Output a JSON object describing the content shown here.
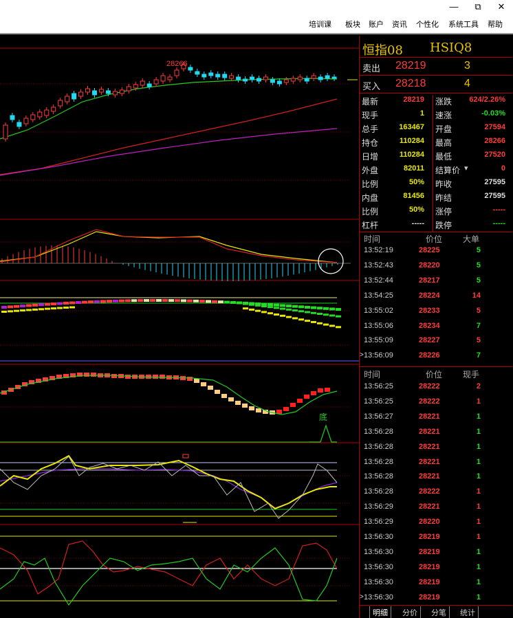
{
  "window": {
    "minimize_icon": "—",
    "restore_icon": "⧉",
    "close_icon": "✕"
  },
  "menu": [
    "培训课",
    "板块",
    "账户",
    "资讯",
    "个性化",
    "系统工具",
    "帮助"
  ],
  "chart": {
    "high_label": "28266",
    "signal_label": "底"
  },
  "quote": {
    "name": "恒指08",
    "code": "HSIQ8",
    "ask": {
      "label": "卖出",
      "price": "28219",
      "volume": "3"
    },
    "bid": {
      "label": "买入",
      "price": "28218",
      "volume": "4"
    },
    "rows": [
      {
        "l1": "最新",
        "v1": "28219",
        "c1": "#ff3b3b",
        "l2": "涨跌",
        "v2": "624/2.26%",
        "c2": "#ff3b3b"
      },
      {
        "l1": "现手",
        "v1": "1",
        "c1": "#e8e800",
        "l2": "速涨",
        "v2": "-0.03%",
        "c2": "#22dd22"
      },
      {
        "l1": "总手",
        "v1": "163467",
        "c1": "#e8e800",
        "l2": "开盘",
        "v2": "27594",
        "c2": "#ff3b3b"
      },
      {
        "l1": "持仓",
        "v1": "110284",
        "c1": "#e8e800",
        "l2": "最高",
        "v2": "28266",
        "c2": "#ff3b3b"
      },
      {
        "l1": "日增",
        "v1": "110284",
        "c1": "#e8e800",
        "l2": "最低",
        "v2": "27520",
        "c2": "#ff3b3b"
      },
      {
        "l1": "外盘",
        "v1": "82011",
        "c1": "#e8e800",
        "l2": "结算价",
        "v2": "0",
        "c2": "#ff3b3b"
      },
      {
        "l1": "比例",
        "v1": "50%",
        "c1": "#e8e800",
        "l2": "昨收",
        "v2": "27595",
        "c2": "#dddddd"
      },
      {
        "l1": "内盘",
        "v1": "81456",
        "c1": "#e8e800",
        "l2": "昨结",
        "v2": "27595",
        "c2": "#dddddd"
      },
      {
        "l1": "比例",
        "v1": "50%",
        "c1": "#e8e800",
        "l2": "涨停",
        "v2": "-----",
        "c2": "#ff3b3b"
      },
      {
        "l1": "杠杆",
        "v1": "-----",
        "c1": "#dddddd",
        "l2": "跌停",
        "v2": "-----",
        "c2": "#22dd22"
      }
    ]
  },
  "detail_table": {
    "headers": [
      "时间",
      "价位",
      "大单"
    ],
    "rows": [
      {
        "time": "13:52:19",
        "price": "28225",
        "vol": "5",
        "color": "#22dd22"
      },
      {
        "time": "13:52:43",
        "price": "28220",
        "vol": "5",
        "color": "#22dd22"
      },
      {
        "time": "13:52:44",
        "price": "28217",
        "vol": "5",
        "color": "#22dd22"
      },
      {
        "time": "13:54:25",
        "price": "28224",
        "vol": "14",
        "color": "#ff3b3b"
      },
      {
        "time": "13:55:02",
        "price": "28233",
        "vol": "5",
        "color": "#ff3b3b"
      },
      {
        "time": "13:55:06",
        "price": "28234",
        "vol": "7",
        "color": "#22dd22"
      },
      {
        "time": "13:55:09",
        "price": "28227",
        "vol": "5",
        "color": "#ff3b3b"
      },
      {
        "time": "13:56:09",
        "price": "28226",
        "vol": "7",
        "color": "#22dd22",
        "cursor": true
      }
    ]
  },
  "tick_table": {
    "headers": [
      "时间",
      "价位",
      "现手"
    ],
    "rows": [
      {
        "time": "13:56:25",
        "price": "28222",
        "vol": "2",
        "color": "#ff3b3b"
      },
      {
        "time": "13:56:25",
        "price": "28222",
        "vol": "1",
        "color": "#ff3b3b"
      },
      {
        "time": "13:56:27",
        "price": "28221",
        "vol": "1",
        "color": "#22dd22"
      },
      {
        "time": "13:56:28",
        "price": "28221",
        "vol": "1",
        "color": "#22dd22"
      },
      {
        "time": "13:56:28",
        "price": "28221",
        "vol": "1",
        "color": "#22dd22"
      },
      {
        "time": "13:56:28",
        "price": "28221",
        "vol": "1",
        "color": "#22dd22"
      },
      {
        "time": "13:56:28",
        "price": "28221",
        "vol": "1",
        "color": "#22dd22"
      },
      {
        "time": "13:56:28",
        "price": "28222",
        "vol": "1",
        "color": "#ff3b3b"
      },
      {
        "time": "13:56:29",
        "price": "28221",
        "vol": "1",
        "color": "#ff3b3b"
      },
      {
        "time": "13:56:29",
        "price": "28220",
        "vol": "1",
        "color": "#ff3b3b"
      },
      {
        "time": "13:56:30",
        "price": "28219",
        "vol": "1",
        "color": "#ff3b3b"
      },
      {
        "time": "13:56:30",
        "price": "28219",
        "vol": "1",
        "color": "#22dd22"
      },
      {
        "time": "13:56:30",
        "price": "28219",
        "vol": "1",
        "color": "#22dd22"
      },
      {
        "time": "13:56:30",
        "price": "28219",
        "vol": "1",
        "color": "#22dd22"
      },
      {
        "time": "13:56:30",
        "price": "28219",
        "vol": "1",
        "color": "#22dd22",
        "cursor": true
      }
    ]
  },
  "tabs": [
    "明细",
    "分价",
    "分笔",
    "统计"
  ],
  "cursor_mark": ">"
}
